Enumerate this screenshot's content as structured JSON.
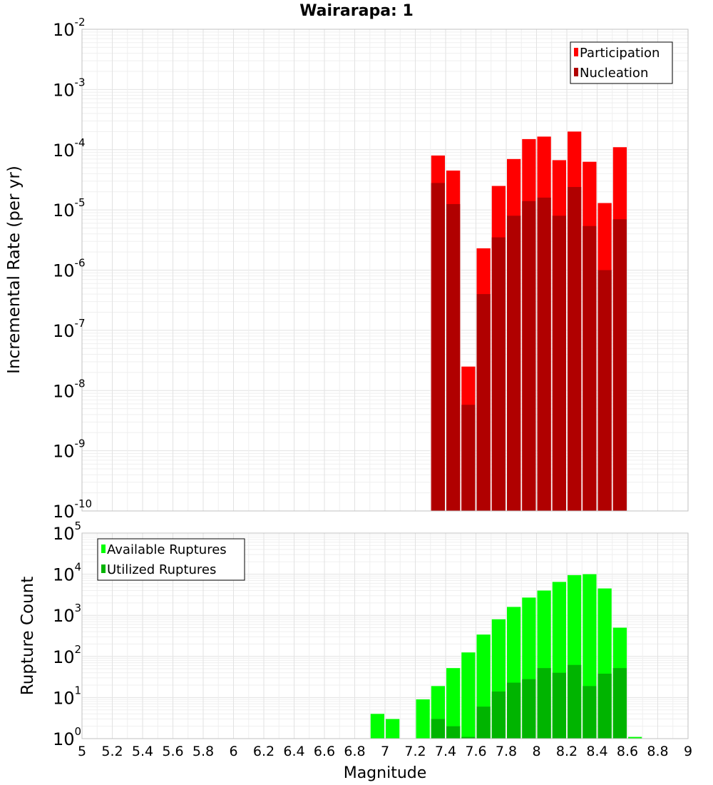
{
  "chart_data": [
    {
      "type": "bar",
      "title": "Wairarapa: 1",
      "xlabel": "",
      "ylabel": "Incremental Rate (per yr)",
      "yscale": "log",
      "ylim_exp": [
        -10,
        -2
      ],
      "xlim": [
        5,
        9
      ],
      "bin_width": 0.1,
      "colors": {
        "Participation": "#ff0000",
        "Nucleation": "#b00000"
      },
      "legend": [
        "Participation",
        "Nucleation"
      ],
      "x": [
        7.35,
        7.45,
        7.55,
        7.65,
        7.75,
        7.85,
        7.95,
        8.05,
        8.15,
        8.25,
        8.35,
        8.45,
        8.55
      ],
      "series": [
        {
          "name": "Participation",
          "values": [
            8e-05,
            4.5e-05,
            2.5e-08,
            2.3e-06,
            2.5e-05,
            7e-05,
            0.00015,
            0.000165,
            6.7e-05,
            0.0002,
            6.3e-05,
            1.3e-05,
            0.00011
          ]
        },
        {
          "name": "Nucleation",
          "values": [
            2.8e-05,
            1.25e-05,
            5.8e-09,
            4e-07,
            3.5e-06,
            8e-06,
            1.4e-05,
            1.6e-05,
            8e-06,
            2.4e-05,
            5.4e-06,
            1e-06,
            7e-06
          ]
        }
      ]
    },
    {
      "type": "bar",
      "title": "",
      "xlabel": "Magnitude",
      "ylabel": "Rupture Count",
      "yscale": "log",
      "ylim_exp": [
        0,
        5
      ],
      "xlim": [
        5,
        9
      ],
      "bin_width": 0.1,
      "colors": {
        "Available Ruptures": "#00ff00",
        "Utilized Ruptures": "#00b400"
      },
      "legend": [
        "Available Ruptures",
        "Utilized Ruptures"
      ],
      "x": [
        6.95,
        7.05,
        7.15,
        7.25,
        7.35,
        7.45,
        7.55,
        7.65,
        7.75,
        7.85,
        7.95,
        8.05,
        8.15,
        8.25,
        8.35,
        8.45,
        8.55,
        8.65
      ],
      "series": [
        {
          "name": "Available Ruptures",
          "values": [
            4,
            3,
            null,
            9,
            19,
            52,
            125,
            340,
            800,
            1600,
            2700,
            4000,
            6500,
            9500,
            10000,
            4500,
            500,
            1.1
          ]
        },
        {
          "name": "Utilized Ruptures",
          "values": [
            null,
            null,
            null,
            null,
            3,
            2,
            1.1,
            6,
            14,
            23,
            28,
            52,
            40,
            62,
            19,
            38,
            52,
            null
          ]
        }
      ],
      "xticks": [
        "5",
        "5.2",
        "5.4",
        "5.6",
        "5.8",
        "6",
        "6.2",
        "6.4",
        "6.6",
        "6.8",
        "7",
        "7.2",
        "7.4",
        "7.6",
        "7.8",
        "8",
        "8.2",
        "8.4",
        "8.6",
        "8.8",
        "9"
      ]
    }
  ]
}
